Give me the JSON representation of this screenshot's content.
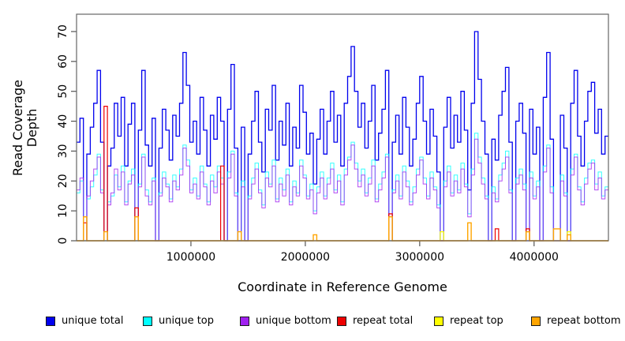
{
  "figure": {
    "x_axis_label": "Coordinate in Reference Genome",
    "y_axis_label": "Read Coverage Depth"
  },
  "legend": [
    {
      "label": "unique total",
      "color": "#0000EE"
    },
    {
      "label": "unique top",
      "color": "#00FFFF"
    },
    {
      "label": "unique bottom",
      "color": "#A020F0"
    },
    {
      "label": "repeat total",
      "color": "#EE0000"
    },
    {
      "label": "repeat top",
      "color": "#FFFF00"
    },
    {
      "label": "repeat bottom",
      "color": "#FFA500"
    }
  ],
  "chart_data": {
    "type": "line",
    "step": true,
    "title": "",
    "xlabel": "Coordinate in Reference Genome",
    "ylabel": "Read Coverage Depth",
    "xlim": [
      0,
      4650000
    ],
    "ylim": [
      0,
      75.8
    ],
    "x_step": 30000,
    "x_ticks": [
      1000000,
      2000000,
      3000000,
      4000000
    ],
    "x_tick_labels": [
      "1000000",
      "2000000",
      "3000000",
      "4000000"
    ],
    "y_ticks": [
      0,
      10,
      20,
      30,
      40,
      50,
      60,
      70
    ],
    "y_tick_labels": [
      "0",
      "10",
      "20",
      "30",
      "40",
      "50",
      "60",
      "70"
    ],
    "grid": false,
    "legend_position": "bottom",
    "series": [
      {
        "name": "unique total",
        "color": "#0000EE",
        "values": [
          33,
          41,
          0,
          29,
          38,
          46,
          57,
          33,
          0,
          25,
          31,
          46,
          35,
          48,
          25,
          39,
          46,
          0,
          37,
          57,
          32,
          25,
          41,
          0,
          31,
          44,
          37,
          27,
          42,
          35,
          46,
          63,
          52,
          33,
          40,
          29,
          48,
          37,
          25,
          42,
          34,
          48,
          40,
          0,
          44,
          59,
          31,
          0,
          38,
          0,
          29,
          40,
          50,
          33,
          23,
          44,
          37,
          52,
          27,
          40,
          32,
          46,
          25,
          38,
          31,
          52,
          43,
          29,
          36,
          19,
          34,
          44,
          29,
          40,
          50,
          33,
          42,
          25,
          46,
          55,
          65,
          50,
          38,
          46,
          31,
          40,
          52,
          27,
          36,
          44,
          57,
          0,
          33,
          42,
          29,
          48,
          38,
          25,
          34,
          46,
          55,
          40,
          29,
          44,
          35,
          23,
          0,
          38,
          48,
          31,
          42,
          33,
          50,
          37,
          17,
          46,
          70,
          54,
          40,
          29,
          0,
          34,
          27,
          42,
          50,
          58,
          33,
          0,
          40,
          46,
          36,
          0,
          44,
          29,
          38,
          0,
          48,
          63,
          34,
          0,
          0,
          42,
          31,
          0,
          46,
          57,
          35,
          25,
          40,
          50,
          53,
          36,
          44,
          29,
          35
        ]
      },
      {
        "name": "unique top",
        "color": "#00FFFF",
        "values": [
          16,
          20,
          0,
          14,
          18,
          22,
          29,
          17,
          0,
          13,
          15,
          22,
          18,
          25,
          13,
          20,
          24,
          0,
          19,
          29,
          17,
          13,
          21,
          0,
          16,
          23,
          19,
          14,
          22,
          18,
          24,
          32,
          27,
          17,
          21,
          15,
          25,
          19,
          13,
          22,
          18,
          25,
          21,
          0,
          23,
          30,
          16,
          0,
          20,
          0,
          15,
          21,
          26,
          17,
          12,
          23,
          19,
          27,
          14,
          21,
          17,
          24,
          13,
          20,
          16,
          27,
          22,
          15,
          19,
          10,
          18,
          23,
          15,
          21,
          26,
          17,
          22,
          13,
          24,
          28,
          33,
          26,
          20,
          24,
          16,
          21,
          27,
          14,
          19,
          23,
          29,
          0,
          17,
          22,
          15,
          25,
          20,
          13,
          18,
          24,
          28,
          21,
          15,
          23,
          18,
          12,
          0,
          20,
          25,
          16,
          22,
          17,
          26,
          19,
          9,
          24,
          36,
          28,
          21,
          15,
          0,
          18,
          14,
          22,
          26,
          30,
          17,
          0,
          21,
          24,
          19,
          0,
          23,
          15,
          20,
          0,
          25,
          32,
          18,
          0,
          0,
          22,
          16,
          0,
          24,
          29,
          18,
          13,
          21,
          26,
          27,
          19,
          23,
          15,
          18
        ]
      },
      {
        "name": "unique bottom",
        "color": "#A020F0",
        "values": [
          17,
          21,
          0,
          15,
          20,
          24,
          28,
          16,
          0,
          12,
          16,
          24,
          17,
          23,
          12,
          19,
          22,
          0,
          18,
          28,
          15,
          12,
          20,
          0,
          15,
          21,
          18,
          13,
          20,
          17,
          22,
          31,
          25,
          16,
          19,
          14,
          23,
          18,
          12,
          20,
          16,
          23,
          19,
          0,
          21,
          29,
          15,
          0,
          18,
          0,
          14,
          19,
          24,
          16,
          11,
          21,
          18,
          25,
          13,
          19,
          15,
          22,
          12,
          18,
          15,
          25,
          21,
          14,
          17,
          9,
          16,
          21,
          14,
          19,
          24,
          16,
          20,
          12,
          22,
          27,
          32,
          24,
          18,
          22,
          15,
          19,
          25,
          13,
          17,
          21,
          28,
          0,
          16,
          20,
          14,
          23,
          18,
          12,
          16,
          22,
          27,
          19,
          14,
          21,
          17,
          11,
          0,
          18,
          23,
          15,
          20,
          16,
          24,
          18,
          8,
          22,
          34,
          26,
          19,
          14,
          0,
          16,
          13,
          20,
          24,
          28,
          16,
          0,
          19,
          22,
          17,
          0,
          21,
          14,
          18,
          0,
          23,
          31,
          16,
          0,
          0,
          20,
          15,
          0,
          22,
          28,
          17,
          12,
          19,
          24,
          26,
          17,
          21,
          14,
          17
        ]
      },
      {
        "name": "repeat total",
        "color": "#EE0000",
        "values": [
          0,
          0,
          6,
          0,
          0,
          0,
          0,
          0,
          45,
          0,
          0,
          0,
          0,
          0,
          0,
          0,
          0,
          11,
          0,
          0,
          0,
          0,
          0,
          0,
          0,
          0,
          0,
          0,
          0,
          0,
          0,
          0,
          0,
          0,
          0,
          0,
          0,
          0,
          0,
          0,
          0,
          0,
          25,
          0,
          0,
          0,
          0,
          0,
          0,
          0,
          0,
          0,
          0,
          0,
          0,
          0,
          0,
          0,
          0,
          0,
          0,
          0,
          0,
          0,
          0,
          0,
          0,
          0,
          0,
          0,
          0,
          0,
          0,
          0,
          0,
          0,
          0,
          0,
          0,
          0,
          0,
          0,
          0,
          0,
          0,
          0,
          0,
          0,
          0,
          0,
          0,
          9,
          0,
          0,
          0,
          0,
          0,
          0,
          0,
          0,
          0,
          0,
          0,
          0,
          0,
          0,
          0,
          0,
          0,
          0,
          0,
          0,
          0,
          0,
          0,
          0,
          0,
          0,
          0,
          0,
          0,
          0,
          4,
          0,
          0,
          0,
          0,
          0,
          0,
          0,
          0,
          4,
          0,
          0,
          0,
          0,
          0,
          0,
          0,
          0,
          0,
          0,
          0,
          0,
          0,
          0,
          0,
          0,
          0,
          0,
          0,
          0,
          0,
          0,
          0
        ]
      },
      {
        "name": "repeat top",
        "color": "#FFFF00",
        "values": [
          0,
          0,
          0,
          0,
          0,
          0,
          0,
          0,
          0,
          0,
          0,
          0,
          0,
          0,
          0,
          0,
          0,
          0,
          0,
          0,
          0,
          0,
          0,
          0,
          0,
          0,
          0,
          0,
          0,
          0,
          0,
          0,
          0,
          0,
          0,
          0,
          0,
          0,
          0,
          0,
          0,
          0,
          0,
          0,
          0,
          0,
          0,
          0,
          0,
          0,
          0,
          0,
          0,
          0,
          0,
          0,
          0,
          0,
          0,
          0,
          0,
          0,
          0,
          0,
          0,
          0,
          0,
          0,
          0,
          0,
          0,
          0,
          0,
          0,
          0,
          0,
          0,
          0,
          0,
          0,
          0,
          0,
          0,
          0,
          0,
          0,
          0,
          0,
          0,
          0,
          0,
          0,
          0,
          0,
          0,
          0,
          0,
          0,
          0,
          0,
          0,
          0,
          0,
          0,
          0,
          0,
          3,
          0,
          0,
          0,
          0,
          0,
          0,
          0,
          0,
          0,
          0,
          0,
          0,
          0,
          0,
          0,
          0,
          0,
          0,
          0,
          0,
          0,
          0,
          0,
          0,
          3,
          0,
          0,
          0,
          0,
          0,
          0,
          0,
          0,
          0,
          0,
          0,
          3,
          0,
          0,
          0,
          0,
          0,
          0,
          0,
          0,
          0,
          0,
          0
        ]
      },
      {
        "name": "repeat bottom",
        "color": "#FFA500",
        "values": [
          0,
          0,
          8,
          0,
          0,
          0,
          0,
          0,
          3,
          0,
          0,
          0,
          0,
          0,
          0,
          0,
          0,
          8,
          0,
          0,
          0,
          0,
          0,
          0,
          0,
          0,
          0,
          0,
          0,
          0,
          0,
          0,
          0,
          0,
          0,
          0,
          0,
          0,
          0,
          0,
          0,
          0,
          0,
          0,
          0,
          0,
          0,
          3,
          0,
          0,
          0,
          0,
          0,
          0,
          0,
          0,
          0,
          0,
          0,
          0,
          0,
          0,
          0,
          0,
          0,
          0,
          0,
          0,
          0,
          2,
          0,
          0,
          0,
          0,
          0,
          0,
          0,
          0,
          0,
          0,
          0,
          0,
          0,
          0,
          0,
          0,
          0,
          0,
          0,
          0,
          0,
          8,
          0,
          0,
          0,
          0,
          0,
          0,
          0,
          0,
          0,
          0,
          0,
          0,
          0,
          0,
          0,
          0,
          0,
          0,
          0,
          0,
          0,
          0,
          6,
          0,
          0,
          0,
          0,
          0,
          0,
          0,
          0,
          0,
          0,
          0,
          0,
          0,
          0,
          0,
          0,
          3,
          0,
          0,
          0,
          0,
          0,
          0,
          0,
          4,
          4,
          0,
          0,
          2,
          0,
          0,
          0,
          0,
          0,
          0,
          0,
          0,
          0,
          0,
          0
        ]
      }
    ]
  }
}
